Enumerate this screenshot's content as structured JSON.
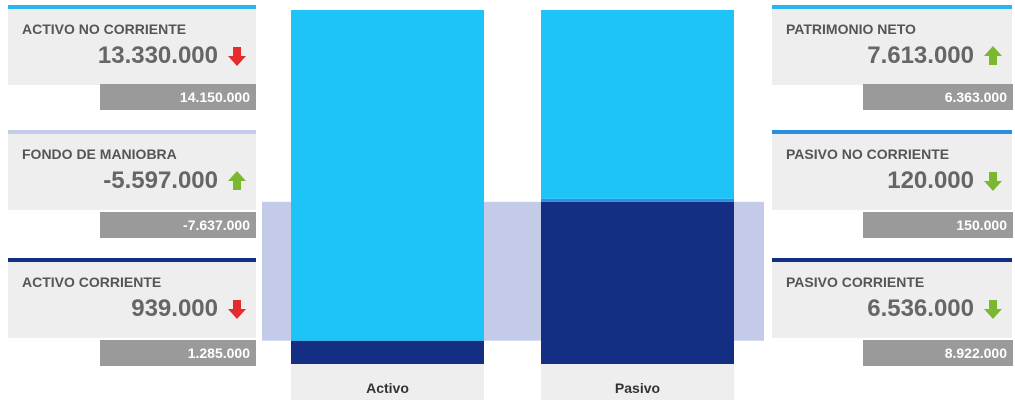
{
  "colors": {
    "light_blue": "#1ec4f8",
    "dark_blue": "#132e82",
    "lavender": "#c3cbe9",
    "card_bg": "#eeeeee",
    "prev_bg": "#9a9a9a",
    "arrow_up": "#7cb82f",
    "arrow_down_red": "#e52b2b",
    "arrow_down_green": "#7cb82f"
  },
  "cards": {
    "activo_no_corriente": {
      "title": "ACTIVO NO CORRIENTE",
      "value": "13.330.000",
      "previous": "14.150.000",
      "trend": "down",
      "arrow_color": "red",
      "accent": "#29b6ef"
    },
    "fondo_de_maniobra": {
      "title": "FONDO DE MANIOBRA",
      "value": "-5.597.000",
      "previous": "-7.637.000",
      "trend": "up",
      "arrow_color": "green",
      "accent": "#c3cbe9"
    },
    "activo_corriente": {
      "title": "ACTIVO CORRIENTE",
      "value": "939.000",
      "previous": "1.285.000",
      "trend": "down",
      "arrow_color": "red",
      "accent": "#132e82"
    },
    "patrimonio_neto": {
      "title": "PATRIMONIO NETO",
      "value": "7.613.000",
      "previous": "6.363.000",
      "trend": "up",
      "arrow_color": "green",
      "accent": "#29b6ef"
    },
    "pasivo_no_corriente": {
      "title": "PASIVO NO CORRIENTE",
      "value": "120.000",
      "previous": "150.000",
      "trend": "down",
      "arrow_color": "green",
      "accent": "#2a8fe0"
    },
    "pasivo_corriente": {
      "title": "PASIVO CORRIENTE",
      "value": "6.536.000",
      "previous": "8.922.000",
      "trend": "down",
      "arrow_color": "green",
      "accent": "#132e82"
    }
  },
  "chart_data": {
    "type": "bar",
    "stacked": true,
    "categories": [
      "Activo",
      "Pasivo"
    ],
    "series": [
      {
        "name": "",
        "values": [
          939000,
          6536000
        ],
        "color": "#132e82"
      },
      {
        "name": "",
        "values": [
          0,
          120000
        ],
        "color": "#2a8fe0"
      },
      {
        "name": "",
        "values": [
          13330000,
          7613000
        ],
        "color": "#1ec4f8"
      }
    ],
    "overlay_band": {
      "from": 939000,
      "to": 6536000,
      "color": "#c3cbe9"
    },
    "ylim": [
      0,
      14269000
    ],
    "grid": false
  }
}
